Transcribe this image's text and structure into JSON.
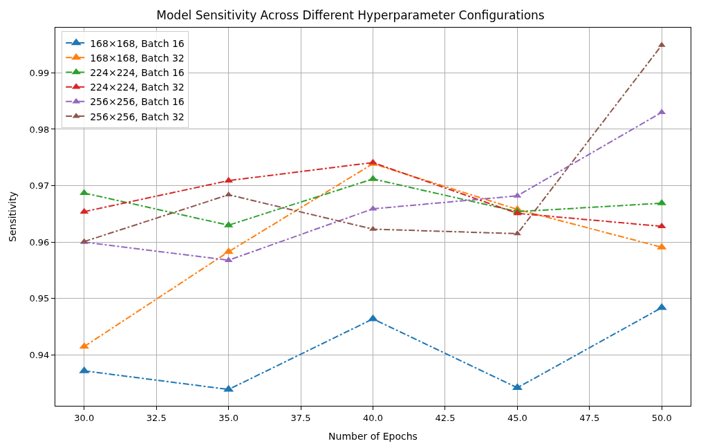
{
  "chart_data": {
    "type": "line",
    "title": "Model Sensitivity Across Different Hyperparameter Configurations",
    "xlabel": "Number of Epochs",
    "ylabel": "Sensitivity",
    "x": [
      30,
      35,
      40,
      45,
      50
    ],
    "series": [
      {
        "name": "168×168, Batch 16",
        "color": "#1f77b4",
        "values": [
          0.9372,
          0.9339,
          0.9464,
          0.9342,
          0.9484
        ]
      },
      {
        "name": "168×168, Batch 32",
        "color": "#ff7f0e",
        "values": [
          0.9415,
          0.9583,
          0.9739,
          0.9658,
          0.9591
        ]
      },
      {
        "name": "224×224, Batch 16",
        "color": "#2ca02c",
        "values": [
          0.9687,
          0.963,
          0.9712,
          0.9654,
          0.9669
        ]
      },
      {
        "name": "224×224, Batch 32",
        "color": "#d62728",
        "values": [
          0.9654,
          0.9709,
          0.9741,
          0.9651,
          0.9628
        ]
      },
      {
        "name": "256×256, Batch 16",
        "color": "#9467bd",
        "values": [
          0.96,
          0.9568,
          0.9659,
          0.9682,
          0.983
        ]
      },
      {
        "name": "256×256, Batch 32",
        "color": "#8c564b",
        "values": [
          0.9601,
          0.9684,
          0.9623,
          0.9615,
          0.9949
        ]
      }
    ],
    "xlim": [
      29,
      51
    ],
    "xticks": [
      {
        "value": 30,
        "label": "30.0"
      },
      {
        "value": 32.5,
        "label": "32.5"
      },
      {
        "value": 35,
        "label": "35.0"
      },
      {
        "value": 37.5,
        "label": "37.5"
      },
      {
        "value": 40,
        "label": "40.0"
      },
      {
        "value": 42.5,
        "label": "42.5"
      },
      {
        "value": 45,
        "label": "45.0"
      },
      {
        "value": 47.5,
        "label": "47.5"
      },
      {
        "value": 50,
        "label": "50.0"
      }
    ],
    "ylim": [
      0.931,
      0.998
    ],
    "yticks": [
      0.94,
      0.95,
      0.96,
      0.97,
      0.98,
      0.99
    ],
    "grid": true,
    "legend": "top left",
    "marker": "triangle",
    "line_style": "dashdot"
  }
}
